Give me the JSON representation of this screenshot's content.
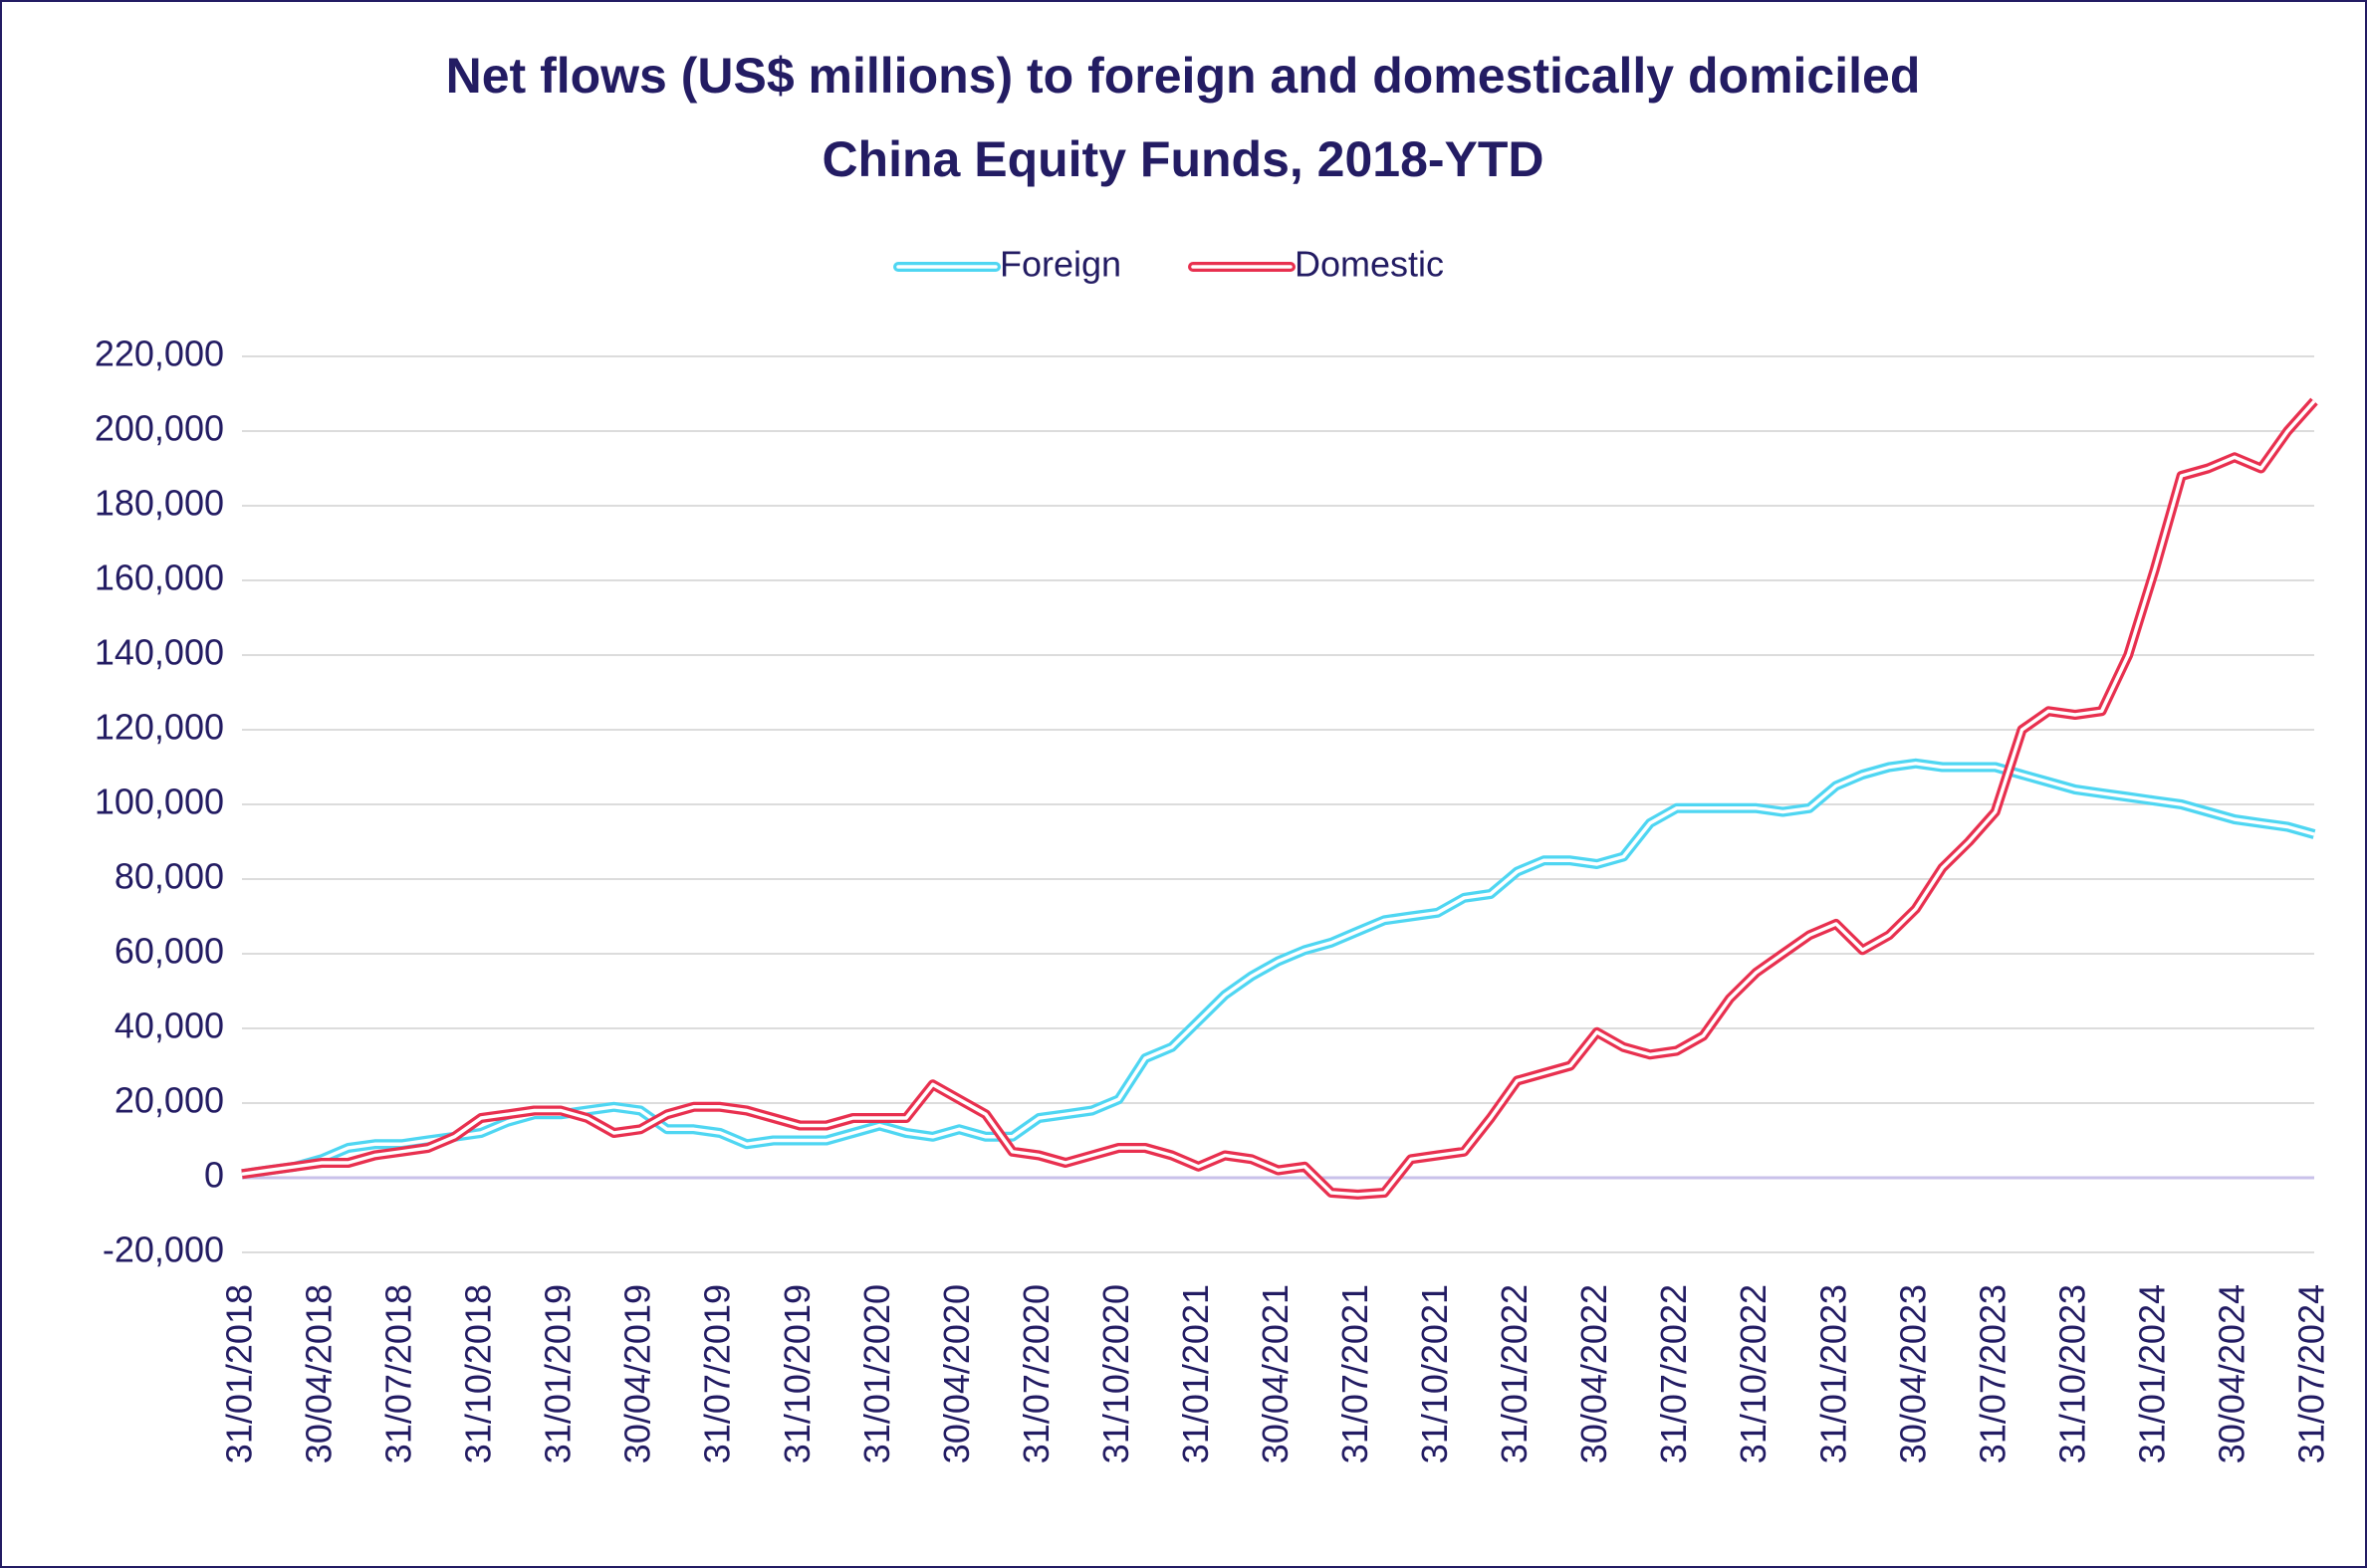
{
  "chart_data": {
    "type": "line",
    "title": [
      "Net flows (US$ millions) to foreign and domestically domiciled",
      "China Equity Funds, 2018-YTD"
    ],
    "categories": [
      "31/01/2018",
      null,
      null,
      "30/04/2018",
      null,
      null,
      "31/07/2018",
      null,
      null,
      "31/10/2018",
      null,
      null,
      "31/01/2019",
      null,
      null,
      "30/04/2019",
      null,
      null,
      "31/07/2019",
      null,
      null,
      "31/10/2019",
      null,
      null,
      "31/01/2020",
      null,
      null,
      "30/04/2020",
      null,
      null,
      "31/07/2020",
      null,
      null,
      "31/10/2020",
      null,
      null,
      "31/01/2021",
      null,
      null,
      "30/04/2021",
      null,
      null,
      "31/07/2021",
      null,
      null,
      "31/10/2021",
      null,
      null,
      "31/01/2022",
      null,
      null,
      "30/04/2022",
      null,
      null,
      "31/07/2022",
      null,
      null,
      "31/10/2022",
      null,
      null,
      "31/01/2023",
      null,
      null,
      "30/04/2023",
      null,
      null,
      "31/07/2023",
      null,
      null,
      "31/10/2023",
      null,
      null,
      "31/01/2024",
      null,
      null,
      "30/04/2024",
      null,
      null,
      "31/07/2024"
    ],
    "series": [
      {
        "name": "Foreign",
        "color": "#4fd6f2",
        "values": [
          1000,
          2000,
          3000,
          5000,
          8000,
          9000,
          9000,
          10000,
          11000,
          12000,
          15000,
          17000,
          17000,
          18000,
          19000,
          18000,
          13000,
          13000,
          12000,
          9000,
          10000,
          10000,
          10000,
          12000,
          14000,
          12000,
          11000,
          13000,
          11000,
          11000,
          16000,
          17000,
          18000,
          21000,
          32000,
          35000,
          42000,
          49000,
          54000,
          58000,
          61000,
          63000,
          66000,
          69000,
          70000,
          71000,
          75000,
          76000,
          82000,
          85000,
          85000,
          84000,
          86000,
          95000,
          99000,
          99000,
          99000,
          99000,
          98000,
          99000,
          105000,
          108000,
          110000,
          111000,
          110000,
          110000,
          110000,
          108000,
          106000,
          104000,
          103000,
          102000,
          101000,
          100000,
          98000,
          96000,
          95000,
          94000,
          92000
        ]
      },
      {
        "name": "Domestic",
        "color": "#e8304f",
        "values": [
          1000,
          2000,
          3000,
          4000,
          4000,
          6000,
          7000,
          8000,
          11000,
          16000,
          17000,
          18000,
          18000,
          16000,
          12000,
          13000,
          17000,
          19000,
          19000,
          18000,
          16000,
          14000,
          14000,
          16000,
          16000,
          16000,
          25000,
          21000,
          17000,
          7000,
          6000,
          4000,
          6000,
          8000,
          8000,
          6000,
          3000,
          6000,
          5000,
          2000,
          3000,
          -4000,
          -4500,
          -4000,
          5000,
          6000,
          7000,
          16000,
          26000,
          28000,
          30000,
          39000,
          35000,
          33000,
          34000,
          38000,
          48000,
          55000,
          60000,
          65000,
          68000,
          61000,
          65000,
          72000,
          83000,
          90000,
          98000,
          120000,
          125000,
          124000,
          125000,
          140000,
          163000,
          188000,
          190000,
          193000,
          190000,
          200000,
          208000
        ]
      }
    ],
    "ylim": [
      -20000,
      220000
    ],
    "yticks": [
      {
        "value": -20000,
        "label": "-20,000"
      },
      0,
      {
        "value": 20000,
        "label": "20,000"
      },
      {
        "value": 40000,
        "label": "40,000"
      },
      {
        "value": 60000,
        "label": "60,000"
      },
      {
        "value": 80000,
        "label": "80,000"
      },
      {
        "value": 100000,
        "label": "100,000"
      },
      {
        "value": 120000,
        "label": "120,000"
      },
      {
        "value": 140000,
        "label": "140,000"
      },
      {
        "value": 160000,
        "label": "160,000"
      },
      {
        "value": 180000,
        "label": "180,000"
      },
      {
        "value": 200000,
        "label": "200,000"
      },
      {
        "value": 220000,
        "label": "220,000"
      }
    ],
    "grid": true,
    "legend": "top"
  }
}
